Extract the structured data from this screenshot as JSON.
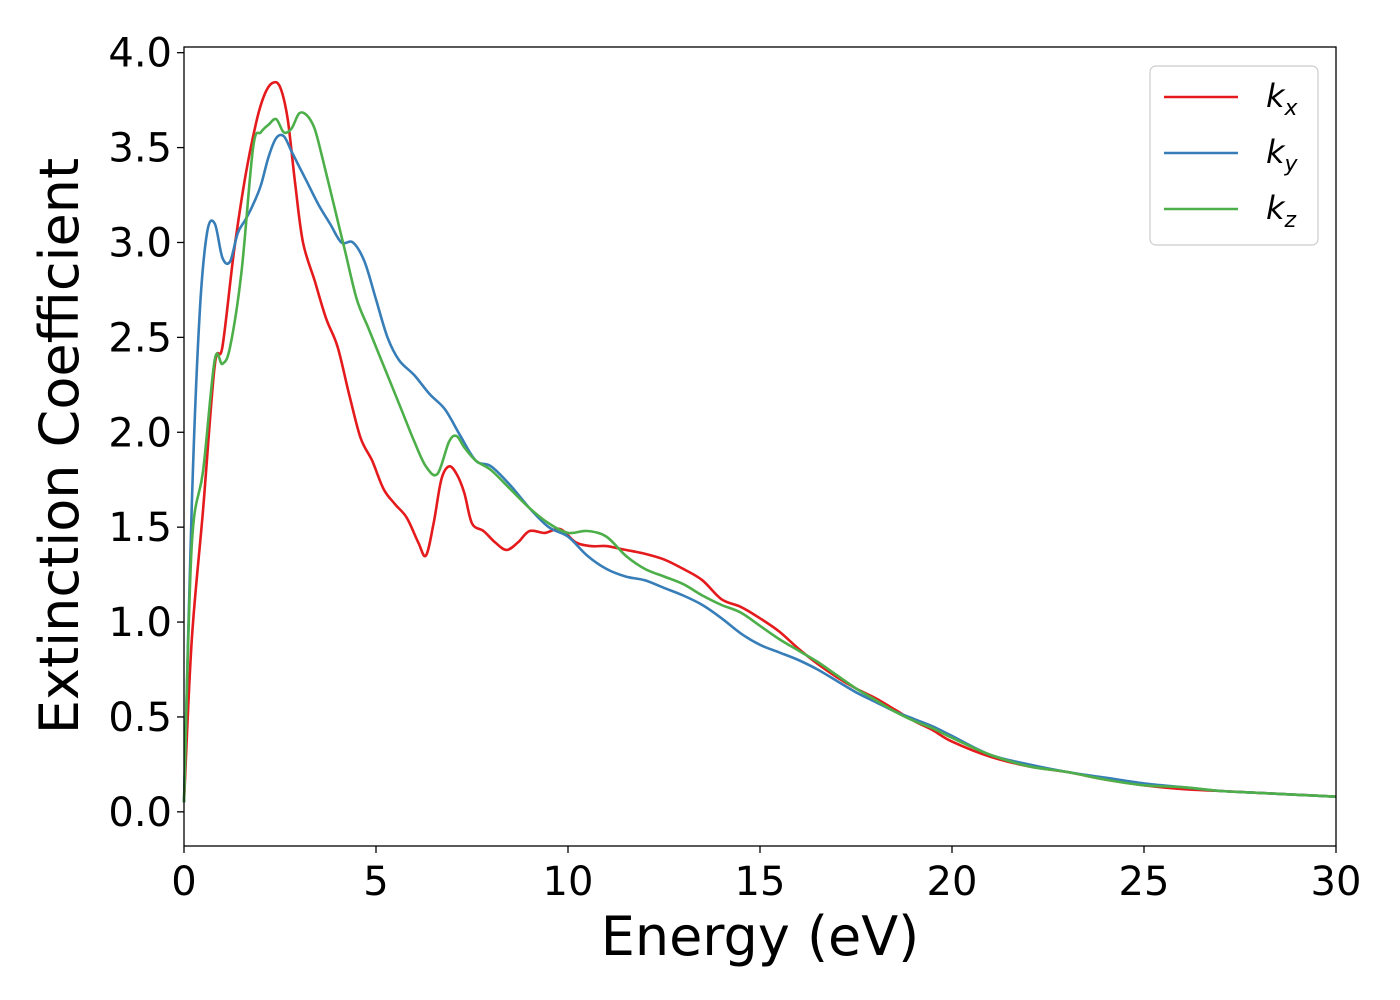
{
  "chart_data": {
    "type": "line",
    "title": "",
    "xlabel": "Energy (eV)",
    "ylabel": "Extinction Coefficient",
    "xlim": [
      0,
      30
    ],
    "ylim": [
      -0.18,
      4.03
    ],
    "xticks": [
      "0",
      "5",
      "10",
      "15",
      "20",
      "25",
      "30"
    ],
    "xtick_values": [
      0,
      5,
      10,
      15,
      20,
      25,
      30
    ],
    "yticks": [
      "0.0",
      "0.5",
      "1.0",
      "1.5",
      "2.0",
      "2.5",
      "3.0",
      "3.5",
      "4.0"
    ],
    "ytick_values": [
      0.0,
      0.5,
      1.0,
      1.5,
      2.0,
      2.5,
      3.0,
      3.5,
      4.0
    ],
    "grid": false,
    "legend_position": "top-right",
    "series": [
      {
        "name": "k_x",
        "label_base": "k",
        "label_sub": "x",
        "color": "#e41a1c",
        "x": [
          0,
          0.2,
          0.5,
          0.8,
          1.0,
          1.3,
          1.6,
          1.9,
          2.1,
          2.3,
          2.5,
          2.7,
          2.9,
          3.1,
          3.4,
          3.7,
          4.0,
          4.3,
          4.6,
          4.9,
          5.2,
          5.5,
          5.8,
          6.1,
          6.3,
          6.5,
          6.7,
          6.9,
          7.1,
          7.3,
          7.5,
          7.8,
          8.1,
          8.4,
          8.7,
          9.0,
          9.4,
          9.8,
          10.2,
          10.6,
          11.0,
          11.5,
          12.0,
          12.5,
          13.0,
          13.5,
          14.0,
          14.5,
          15.0,
          15.5,
          16.0,
          16.5,
          17.0,
          17.5,
          18.0,
          18.5,
          19.0,
          19.5,
          20.0,
          21.0,
          22.0,
          23.0,
          24.0,
          25.0,
          26.0,
          27.0,
          28.0,
          29.0,
          30.0
        ],
        "y": [
          0.05,
          0.9,
          1.6,
          2.35,
          2.45,
          2.95,
          3.35,
          3.65,
          3.78,
          3.84,
          3.82,
          3.65,
          3.3,
          3.0,
          2.8,
          2.6,
          2.45,
          2.2,
          1.97,
          1.85,
          1.7,
          1.62,
          1.55,
          1.42,
          1.35,
          1.52,
          1.75,
          1.82,
          1.78,
          1.68,
          1.52,
          1.48,
          1.42,
          1.38,
          1.42,
          1.48,
          1.47,
          1.49,
          1.42,
          1.4,
          1.4,
          1.38,
          1.36,
          1.33,
          1.28,
          1.22,
          1.12,
          1.08,
          1.02,
          0.95,
          0.86,
          0.78,
          0.71,
          0.65,
          0.6,
          0.54,
          0.48,
          0.43,
          0.37,
          0.29,
          0.24,
          0.21,
          0.17,
          0.14,
          0.12,
          0.11,
          0.1,
          0.09,
          0.08
        ]
      },
      {
        "name": "k_y",
        "label_base": "k",
        "label_sub": "y",
        "color": "#377eb8",
        "x": [
          0,
          0.2,
          0.4,
          0.6,
          0.8,
          1.0,
          1.2,
          1.4,
          1.6,
          1.8,
          2.0,
          2.2,
          2.4,
          2.6,
          2.8,
          3.0,
          3.2,
          3.5,
          3.8,
          4.1,
          4.4,
          4.7,
          5.0,
          5.3,
          5.6,
          6.0,
          6.4,
          6.8,
          7.2,
          7.6,
          8.0,
          8.5,
          9.0,
          9.5,
          10.0,
          10.5,
          11.0,
          11.5,
          12.0,
          12.5,
          13.0,
          13.5,
          14.0,
          14.5,
          15.0,
          15.5,
          16.0,
          16.5,
          17.0,
          17.5,
          18.0,
          18.5,
          19.0,
          19.5,
          20.0,
          21.0,
          22.0,
          23.0,
          24.0,
          25.0,
          26.0,
          27.0,
          28.0,
          29.0,
          30.0
        ],
        "y": [
          0.05,
          1.6,
          2.6,
          3.05,
          3.1,
          2.92,
          2.9,
          3.05,
          3.12,
          3.2,
          3.3,
          3.45,
          3.55,
          3.56,
          3.48,
          3.4,
          3.32,
          3.2,
          3.1,
          3.0,
          3.0,
          2.9,
          2.7,
          2.5,
          2.38,
          2.3,
          2.2,
          2.12,
          1.98,
          1.85,
          1.82,
          1.72,
          1.6,
          1.5,
          1.45,
          1.35,
          1.28,
          1.24,
          1.22,
          1.18,
          1.14,
          1.09,
          1.02,
          0.94,
          0.88,
          0.84,
          0.8,
          0.75,
          0.69,
          0.63,
          0.58,
          0.53,
          0.49,
          0.45,
          0.4,
          0.3,
          0.25,
          0.21,
          0.18,
          0.15,
          0.13,
          0.11,
          0.1,
          0.09,
          0.08
        ]
      },
      {
        "name": "k_z",
        "label_base": "k",
        "label_sub": "z",
        "color": "#4daf4a",
        "x": [
          0,
          0.2,
          0.5,
          0.8,
          1.0,
          1.2,
          1.5,
          1.8,
          2.0,
          2.2,
          2.4,
          2.6,
          2.8,
          3.0,
          3.2,
          3.4,
          3.6,
          3.9,
          4.2,
          4.5,
          4.8,
          5.1,
          5.4,
          5.7,
          6.0,
          6.3,
          6.6,
          6.9,
          7.1,
          7.3,
          7.6,
          8.0,
          8.5,
          9.0,
          9.5,
          10.0,
          10.5,
          11.0,
          11.5,
          12.0,
          12.5,
          13.0,
          13.5,
          14.0,
          14.5,
          15.0,
          15.5,
          16.0,
          16.5,
          17.0,
          17.5,
          18.0,
          18.5,
          19.0,
          19.5,
          20.0,
          21.0,
          22.0,
          23.0,
          24.0,
          25.0,
          26.0,
          27.0,
          28.0,
          29.0,
          30.0
        ],
        "y": [
          0.05,
          1.4,
          1.8,
          2.38,
          2.36,
          2.45,
          2.85,
          3.5,
          3.58,
          3.62,
          3.65,
          3.58,
          3.6,
          3.68,
          3.67,
          3.6,
          3.45,
          3.2,
          2.95,
          2.7,
          2.55,
          2.4,
          2.25,
          2.1,
          1.95,
          1.82,
          1.78,
          1.95,
          1.98,
          1.92,
          1.85,
          1.8,
          1.7,
          1.6,
          1.52,
          1.47,
          1.48,
          1.45,
          1.35,
          1.28,
          1.24,
          1.2,
          1.14,
          1.09,
          1.05,
          0.98,
          0.91,
          0.85,
          0.79,
          0.72,
          0.65,
          0.59,
          0.53,
          0.48,
          0.44,
          0.39,
          0.3,
          0.24,
          0.21,
          0.17,
          0.14,
          0.13,
          0.11,
          0.1,
          0.09,
          0.08
        ]
      }
    ]
  }
}
